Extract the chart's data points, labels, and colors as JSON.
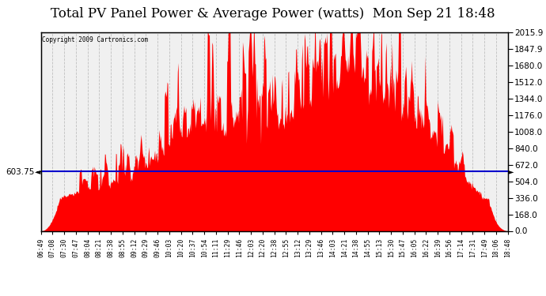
{
  "title": "Total PV Panel Power & Average Power (watts)  Mon Sep 21 18:48",
  "copyright": "Copyright 2009 Cartronics.com",
  "ymax": 2015.9,
  "ymin": 0.0,
  "yticks_right": [
    0.0,
    168.0,
    336.0,
    504.0,
    672.0,
    840.0,
    1008.0,
    1176.0,
    1344.0,
    1512.0,
    1680.0,
    1847.9,
    2015.9
  ],
  "average_line": 603.75,
  "average_label": "603.75",
  "fill_color": "#FF0000",
  "line_color": "#0000CC",
  "background_color": "#FFFFFF",
  "plot_bg_color": "#F0F0F0",
  "grid_color": "#C0C0C0",
  "title_fontsize": 12,
  "xtick_labels": [
    "06:49",
    "07:08",
    "07:30",
    "07:47",
    "08:04",
    "08:21",
    "08:38",
    "08:55",
    "09:12",
    "09:29",
    "09:46",
    "10:03",
    "10:20",
    "10:37",
    "10:54",
    "11:11",
    "11:29",
    "11:46",
    "12:03",
    "12:20",
    "12:38",
    "12:55",
    "13:12",
    "13:29",
    "13:46",
    "14:03",
    "14:21",
    "14:38",
    "14:55",
    "15:13",
    "15:30",
    "15:47",
    "16:05",
    "16:22",
    "16:39",
    "16:56",
    "17:14",
    "17:31",
    "17:49",
    "18:06",
    "18:48"
  ],
  "seed": 77
}
